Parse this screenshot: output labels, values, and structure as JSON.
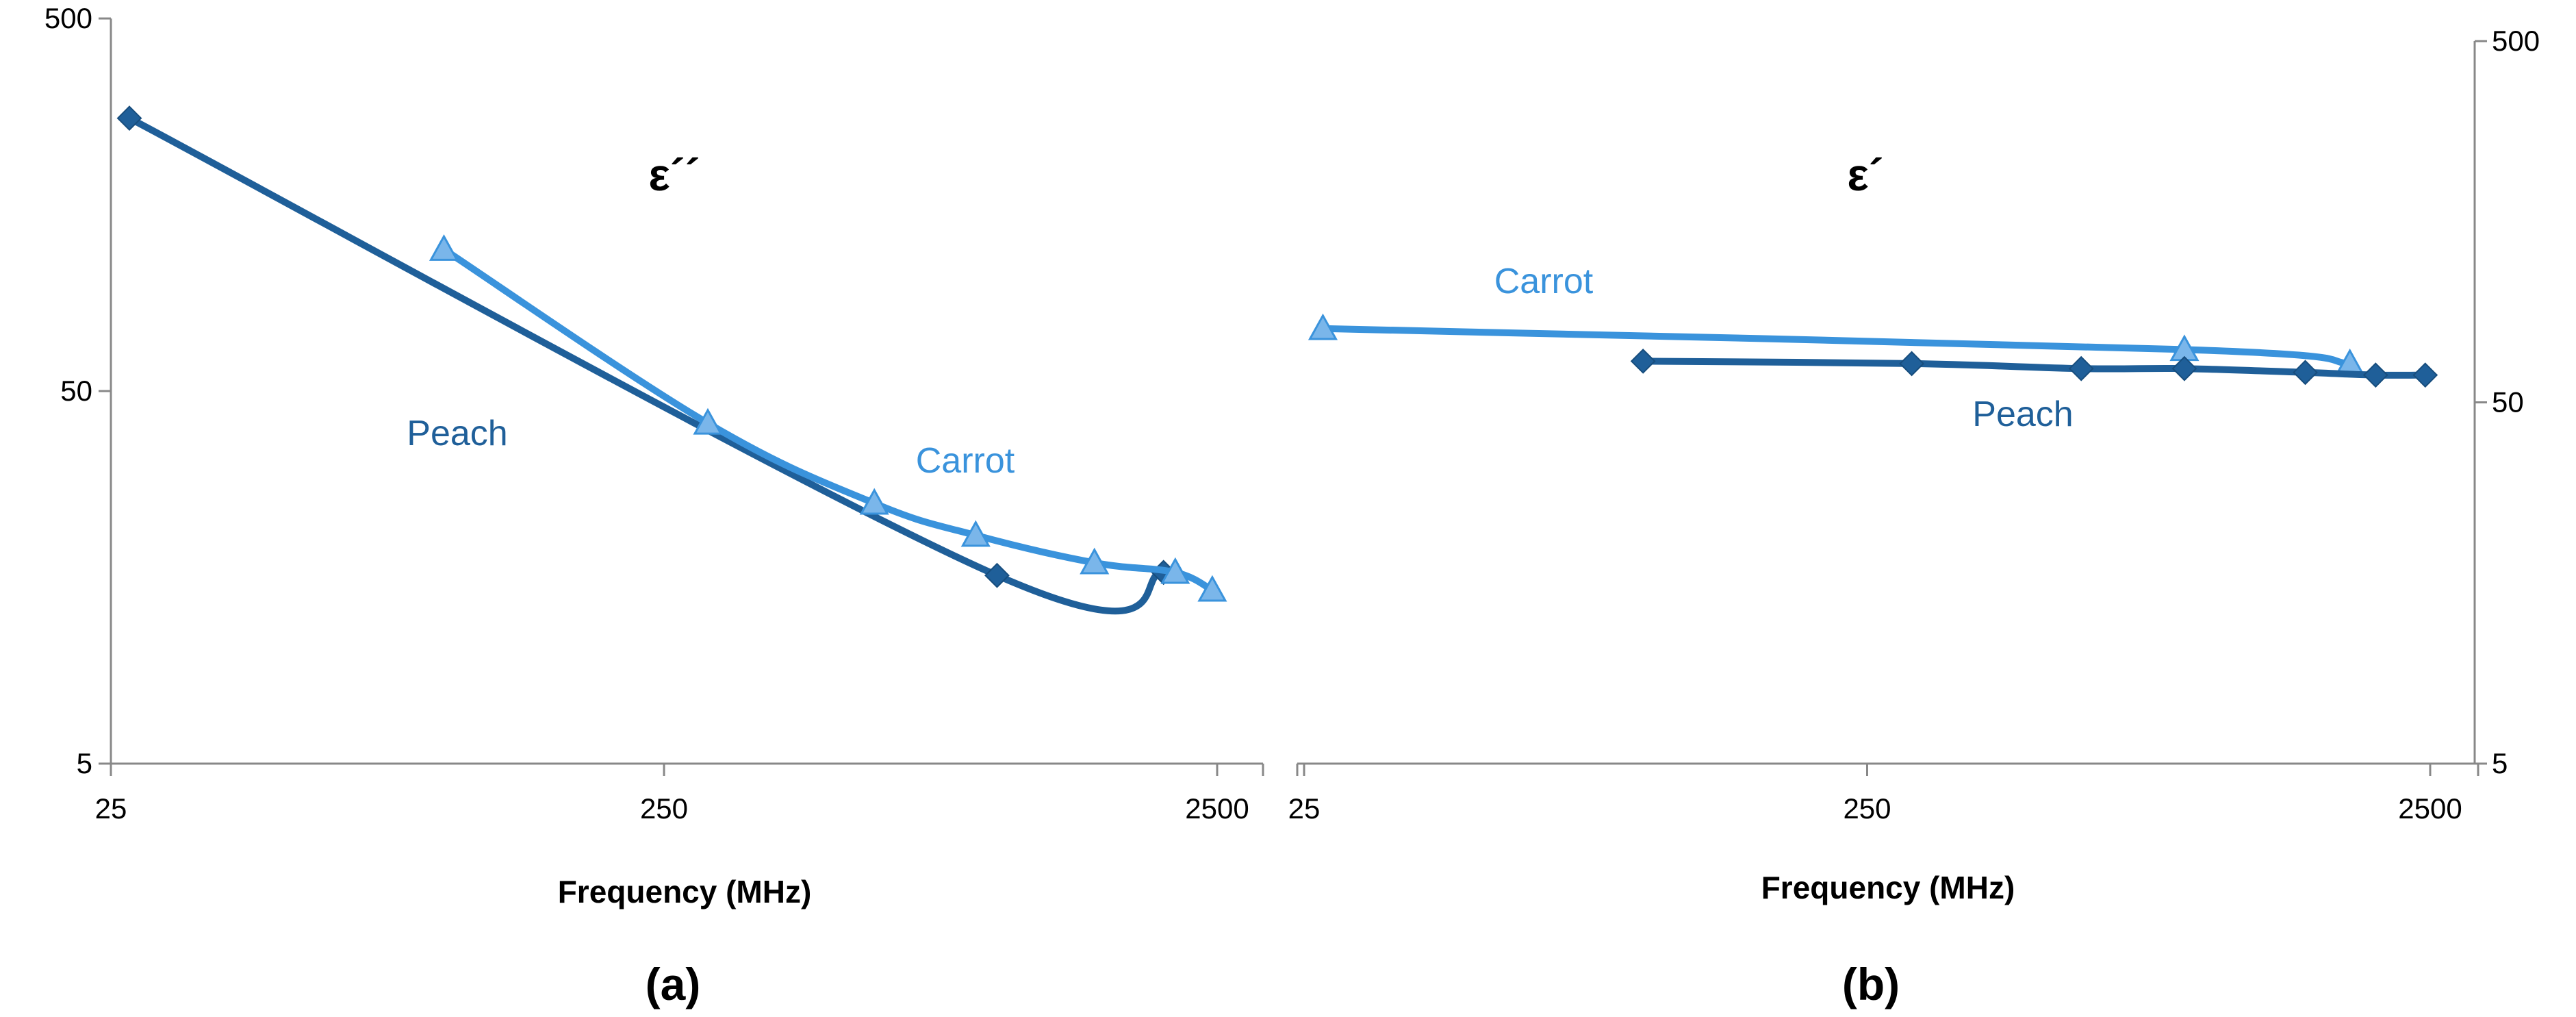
{
  "colors": {
    "Peach": "#1f5f99",
    "Carrot": "#3a93dc",
    "axis": "#888888",
    "text": "#000000"
  },
  "chart_data": [
    {
      "type": "line",
      "panel_label": "(a)",
      "title": "ε´´",
      "xlabel": "Frequency (MHz)",
      "ylabel": "",
      "x_scale": "log",
      "y_scale": "log",
      "xlim": [
        25,
        2500
      ],
      "ylim": [
        5,
        500
      ],
      "x_ticks": [
        "25",
        "250",
        "2500"
      ],
      "y_ticks": [
        "500",
        "50",
        "5"
      ],
      "y_axis_side": "left",
      "grid": false,
      "legend": "none",
      "series": [
        {
          "name": "Peach",
          "marker": "diamond",
          "x": [
            27,
            1000,
            2000
          ],
          "y": [
            270,
            16,
            16.3
          ]
        },
        {
          "name": "Carrot",
          "marker": "triangle",
          "x": [
            100,
            300,
            600,
            915,
            1500,
            2100,
            2450
          ],
          "y": [
            120,
            41,
            25,
            20.5,
            17.3,
            16.3,
            14.6
          ]
        }
      ],
      "annotations": [
        "Peach",
        "Carrot"
      ]
    },
    {
      "type": "line",
      "panel_label": "(b)",
      "title": "ε´",
      "xlabel": "Frequency (MHz)",
      "ylabel": "",
      "x_scale": "log",
      "y_scale": "log",
      "xlim": [
        25,
        2500
      ],
      "ylim": [
        5,
        500
      ],
      "x_ticks": [
        "25",
        "250",
        "2500"
      ],
      "y_ticks": [
        "500",
        "50",
        "5"
      ],
      "y_axis_side": "right",
      "grid": false,
      "legend": "none",
      "series": [
        {
          "name": "Carrot",
          "marker": "triangle",
          "x": [
            27,
            915,
            1800
          ],
          "y": [
            80,
            70,
            64
          ]
        },
        {
          "name": "Peach",
          "marker": "diamond",
          "x": [
            100,
            300,
            600,
            915,
            1500,
            2000,
            2450
          ],
          "y": [
            65,
            64,
            62,
            62,
            60.5,
            59.5,
            59.5
          ]
        }
      ],
      "annotations": [
        "Carrot",
        "Peach"
      ]
    }
  ]
}
